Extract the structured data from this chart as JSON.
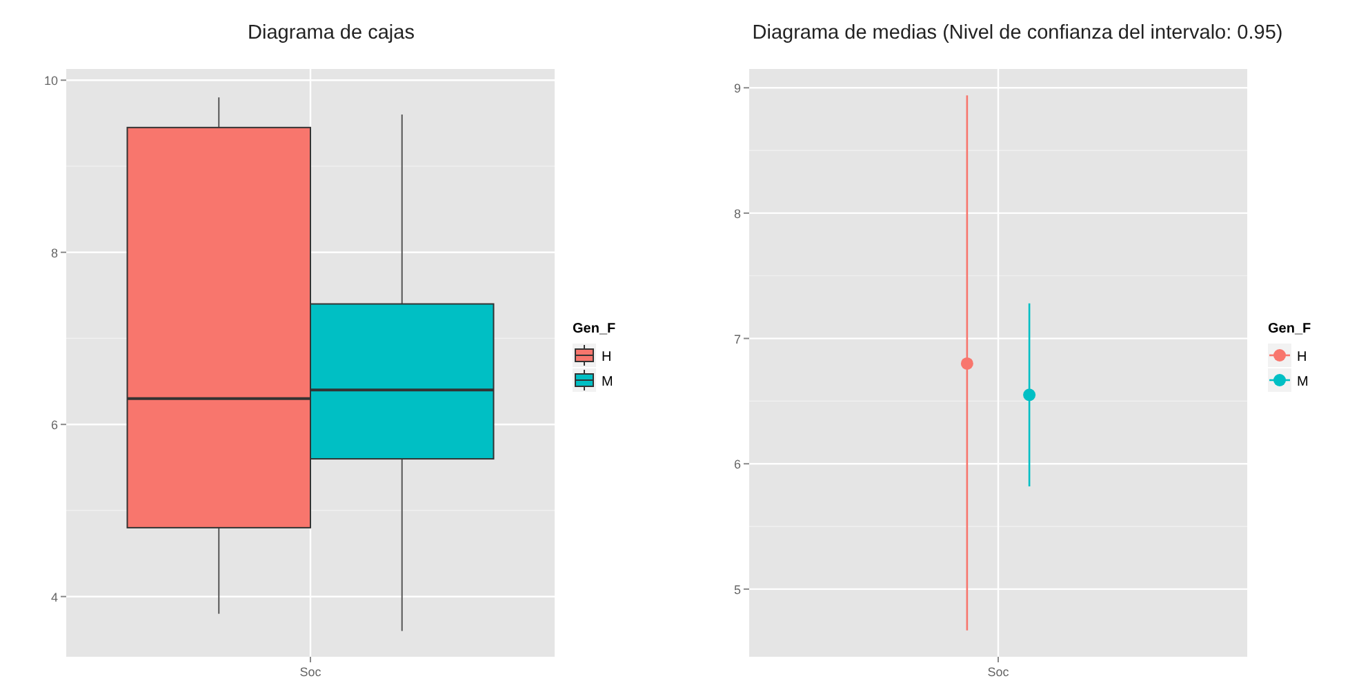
{
  "chart_data": [
    {
      "type": "box",
      "title": "Diagrama de cajas",
      "legend_title": "Gen_F",
      "categories": [
        "Soc"
      ],
      "ylim": [
        3.3,
        10.13
      ],
      "yticks": [
        4,
        6,
        8,
        10
      ],
      "grid": true,
      "legend": "right",
      "series": [
        {
          "name": "H",
          "color": "#f8766d",
          "boxes": [
            {
              "low": 3.8,
              "q1": 4.8,
              "median": 6.3,
              "q3": 9.45,
              "high": 9.8
            }
          ]
        },
        {
          "name": "M",
          "color": "#00bfc4",
          "boxes": [
            {
              "low": 3.6,
              "q1": 5.6,
              "median": 6.4,
              "q3": 7.4,
              "high": 9.6
            }
          ]
        }
      ]
    },
    {
      "type": "scatter",
      "title": "Diagrama de medias (Nivel de confianza del intervalo: 0.95)",
      "legend_title": "Gen_F",
      "categories": [
        "Soc"
      ],
      "ylim": [
        4.46,
        9.15
      ],
      "yticks": [
        5,
        6,
        7,
        8,
        9
      ],
      "grid": true,
      "legend": "right",
      "marker": "circle",
      "series": [
        {
          "name": "H",
          "color": "#f8766d",
          "values": [
            6.8
          ],
          "errors": [
            [
              4.67,
              8.94
            ]
          ]
        },
        {
          "name": "M",
          "color": "#00bfc4",
          "values": [
            6.55
          ],
          "errors": [
            [
              5.82,
              7.28
            ]
          ]
        }
      ]
    }
  ]
}
